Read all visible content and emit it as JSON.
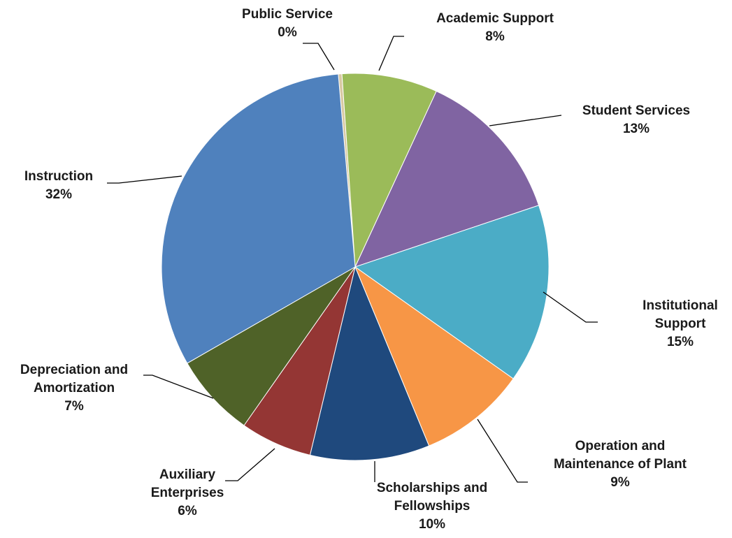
{
  "chart_data": {
    "type": "pie",
    "slices": [
      {
        "label": [
          "Public Service"
        ],
        "value": 0.3,
        "percent_label": "0%",
        "color": "#d8c9a3"
      },
      {
        "label": [
          "Academic Support"
        ],
        "value": 8,
        "percent_label": "8%",
        "color": "#9bbb59"
      },
      {
        "label": [
          "Student Services"
        ],
        "value": 13,
        "percent_label": "13%",
        "color": "#8064a2"
      },
      {
        "label": [
          "Institutional",
          "Support"
        ],
        "value": 15,
        "percent_label": "15%",
        "color": "#4bacc6"
      },
      {
        "label": [
          "Operation and",
          "Maintenance of Plant"
        ],
        "value": 9,
        "percent_label": "9%",
        "color": "#f79646"
      },
      {
        "label": [
          "Scholarships and",
          "Fellowships"
        ],
        "value": 10,
        "percent_label": "10%",
        "color": "#1f497d"
      },
      {
        "label": [
          "Auxiliary",
          "Enterprises"
        ],
        "value": 6,
        "percent_label": "6%",
        "color": "#943634"
      },
      {
        "label": [
          "Depreciation and",
          "Amortization"
        ],
        "value": 7,
        "percent_label": "7%",
        "color": "#4f6228"
      },
      {
        "label": [
          "Instruction"
        ],
        "value": 32,
        "percent_label": "32%",
        "color": "#4f81bd"
      }
    ],
    "legend": "none"
  }
}
